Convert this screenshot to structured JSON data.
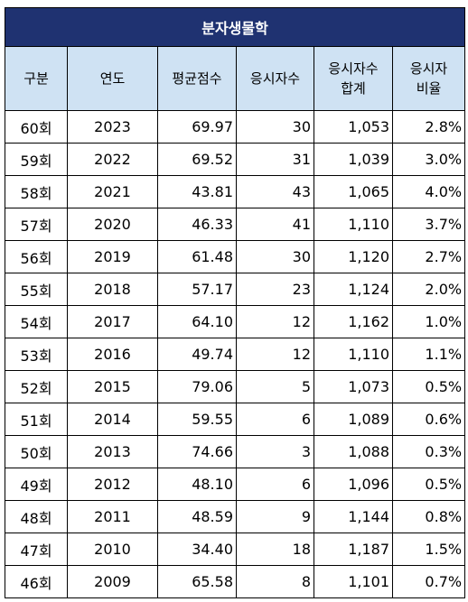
{
  "table": {
    "title": "분자생물학",
    "headers": [
      {
        "line1": "구분",
        "line2": ""
      },
      {
        "line1": "연도",
        "line2": ""
      },
      {
        "line1": "평균점수",
        "line2": ""
      },
      {
        "line1": "응시자수",
        "line2": ""
      },
      {
        "line1": "응시자수",
        "line2": "합계"
      },
      {
        "line1": "응시자",
        "line2": "비율"
      }
    ],
    "rows": [
      [
        "60회",
        "2023",
        "69.97",
        "30",
        "1,053",
        "2.8%"
      ],
      [
        "59회",
        "2022",
        "69.52",
        "31",
        "1,039",
        "3.0%"
      ],
      [
        "58회",
        "2021",
        "43.81",
        "43",
        "1,065",
        "4.0%"
      ],
      [
        "57회",
        "2020",
        "46.33",
        "41",
        "1,110",
        "3.7%"
      ],
      [
        "56회",
        "2019",
        "61.48",
        "30",
        "1,120",
        "2.7%"
      ],
      [
        "55회",
        "2018",
        "57.17",
        "23",
        "1,124",
        "2.0%"
      ],
      [
        "54회",
        "2017",
        "64.10",
        "12",
        "1,162",
        "1.0%"
      ],
      [
        "53회",
        "2016",
        "49.74",
        "12",
        "1,110",
        "1.1%"
      ],
      [
        "52회",
        "2015",
        "79.06",
        "5",
        "1,073",
        "0.5%"
      ],
      [
        "51회",
        "2014",
        "59.55",
        "6",
        "1,089",
        "0.6%"
      ],
      [
        "50회",
        "2013",
        "74.66",
        "3",
        "1,088",
        "0.3%"
      ],
      [
        "49회",
        "2012",
        "48.10",
        "6",
        "1,096",
        "0.5%"
      ],
      [
        "48회",
        "2011",
        "48.59",
        "9",
        "1,144",
        "0.8%"
      ],
      [
        "47회",
        "2010",
        "34.40",
        "18",
        "1,187",
        "1.5%"
      ],
      [
        "46회",
        "2009",
        "65.58",
        "8",
        "1,101",
        "0.7%"
      ]
    ]
  },
  "colors": {
    "title_background": "#1f3271",
    "header_background": "#cfe2f3",
    "border": "#000000"
  }
}
